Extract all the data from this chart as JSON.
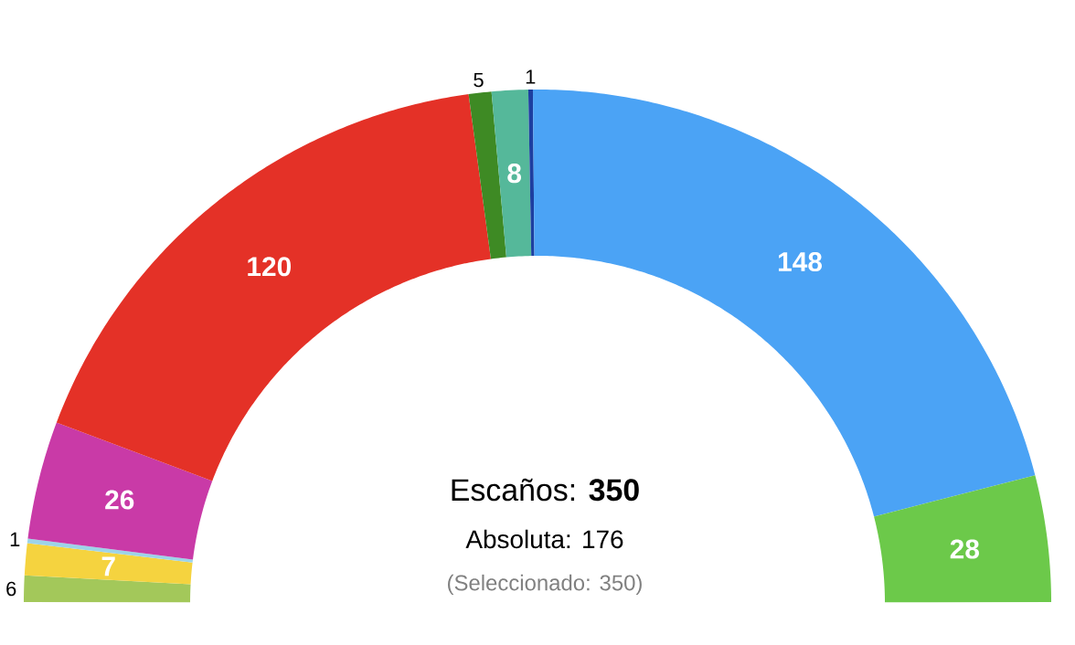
{
  "chart_data": {
    "type": "donut",
    "categories": [
      null,
      null,
      null,
      null,
      null,
      null,
      null,
      null,
      null,
      null
    ],
    "values": [
      6,
      7,
      1,
      26,
      120,
      5,
      8,
      1,
      148,
      28
    ],
    "colors": [
      "#a3c85a",
      "#f5d33f",
      "#9dd3e8",
      "#c93aa7",
      "#e43127",
      "#3e8a24",
      "#55b89a",
      "#1d3fa0",
      "#4ba3f5",
      "#6cc94a"
    ],
    "data_labels": true,
    "annotations": [
      "Escaños: **350**",
      "Absoluta: 176",
      "(Seleccionado: 350)"
    ]
  }
}
